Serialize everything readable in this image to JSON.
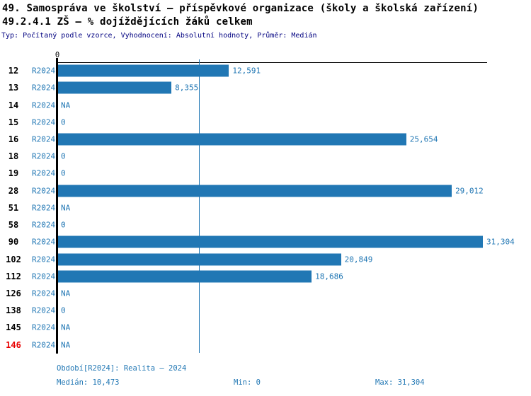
{
  "header": {
    "title": "49. Samospráva ve školství – příspěvkové organizace (školy a školská zařízení)",
    "subtitle": "49.2.4.1 ZŠ – % dojíždějících žáků celkem",
    "meta": "Typ: Počítaný podle vzorce, Vyhodnocení: Absolutní hodnoty, Průměr: Medián"
  },
  "chart_data": {
    "type": "bar",
    "orientation": "horizontal",
    "title": "49.2.4.1 ZŠ – % dojíždějících žáků celkem",
    "categories": [
      "12",
      "13",
      "14",
      "15",
      "16",
      "18",
      "19",
      "28",
      "51",
      "58",
      "90",
      "102",
      "112",
      "126",
      "138",
      "145",
      "146"
    ],
    "series_label": "R2024",
    "values": [
      12591,
      8355,
      null,
      0,
      25654,
      0,
      0,
      29012,
      null,
      0,
      31304,
      20849,
      18686,
      null,
      0,
      null,
      null
    ],
    "value_labels": [
      "12,591",
      "8,355",
      "NA",
      "0",
      "25,654",
      "0",
      "0",
      "29,012",
      "NA",
      "0",
      "31,304",
      "20,849",
      "18,686",
      "NA",
      "0",
      "NA",
      "NA"
    ],
    "xlim": [
      0,
      31304
    ],
    "axis_tick_label": "0",
    "median_value": 10473,
    "highlight_ids": [
      "146"
    ],
    "grid": false,
    "legend": "none"
  },
  "footer": {
    "period_line": "Období[R2024]: Realita – 2024",
    "median_label": "Medián: 10,473",
    "min_label": "Min: 0",
    "max_label": "Max: 31,304"
  },
  "colors": {
    "bar": "#2177B4",
    "blue_text": "#2177B4",
    "median_line": "#2177B4",
    "meta_text": "#000080",
    "highlight_red": "#E80000",
    "axis": "#000000"
  }
}
